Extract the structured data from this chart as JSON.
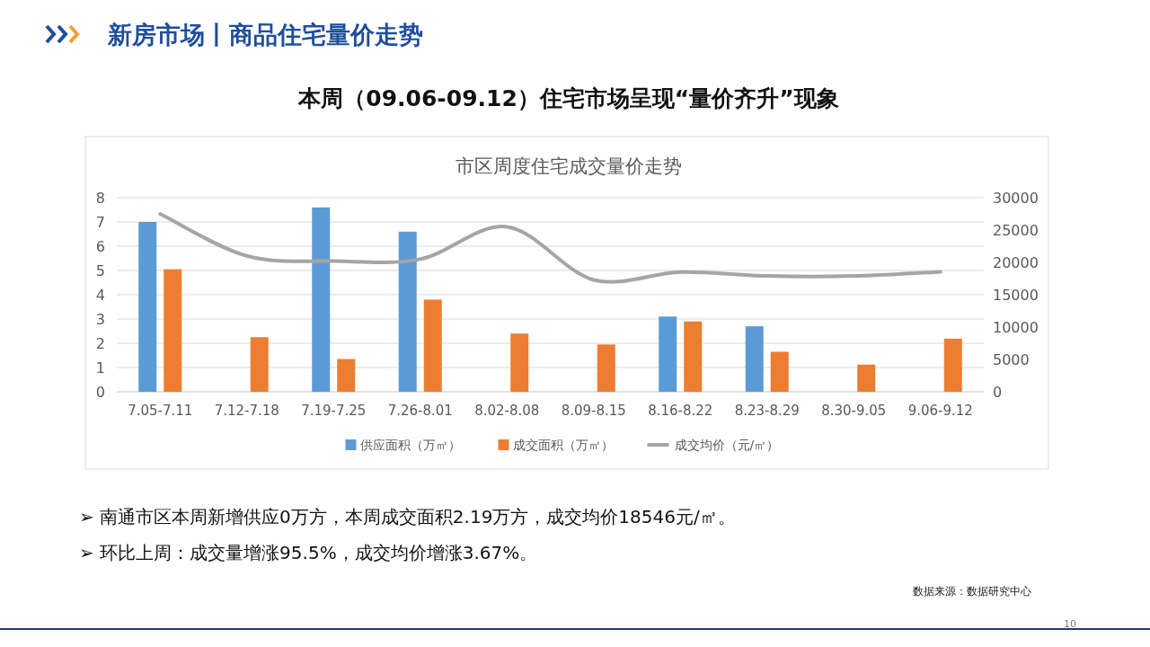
{
  "chart_data": {
    "type": "bar",
    "title": "市区周度住宅成交量价走势",
    "categories": [
      "7.05-7.11",
      "7.12-7.18",
      "7.19-7.25",
      "7.26-8.01",
      "8.02-8.08",
      "8.09-8.15",
      "8.16-8.22",
      "8.23-8.29",
      "8.30-9.05",
      "9.06-9.12"
    ],
    "series": [
      {
        "name": "供应面积（万㎡）",
        "color": "#5b9bd5",
        "values": [
          7.0,
          null,
          7.6,
          6.6,
          null,
          null,
          3.1,
          2.7,
          null,
          null
        ]
      },
      {
        "name": "成交面积（万㎡）",
        "color": "#ed7d31",
        "values": [
          5.05,
          2.25,
          1.35,
          3.8,
          2.4,
          1.95,
          2.9,
          1.65,
          1.12,
          2.19
        ]
      },
      {
        "name": "成交均价（元/㎡）",
        "color": "#a5a5a5",
        "type": "line",
        "axis": "y2",
        "values": [
          27500,
          21000,
          20200,
          20500,
          25500,
          17300,
          18500,
          17900,
          17900,
          18546
        ]
      }
    ],
    "ylim": [
      0,
      8
    ],
    "yticks": [
      0,
      1,
      2,
      3,
      4,
      5,
      6,
      7,
      8
    ],
    "y2lim": [
      0,
      30000
    ],
    "y2ticks": [
      0,
      5000,
      10000,
      15000,
      20000,
      25000,
      30000
    ],
    "grid": "y",
    "legend": "bottom",
    "marker": "none",
    "annotations": [
      "新房市场丨商品住宅量价走势",
      "本周（09.06-09.12）住宅市场呈现“量价齐升”现象",
      "➢  南通市区本周新增供应0万方，本周成交面积2.19万方，成交均价18546元/㎡。",
      "➢  环比上周：成交量增涨95.5%，成交均价增涨3.67%。",
      "数据来源：数据研究中心",
      "10"
    ]
  }
}
